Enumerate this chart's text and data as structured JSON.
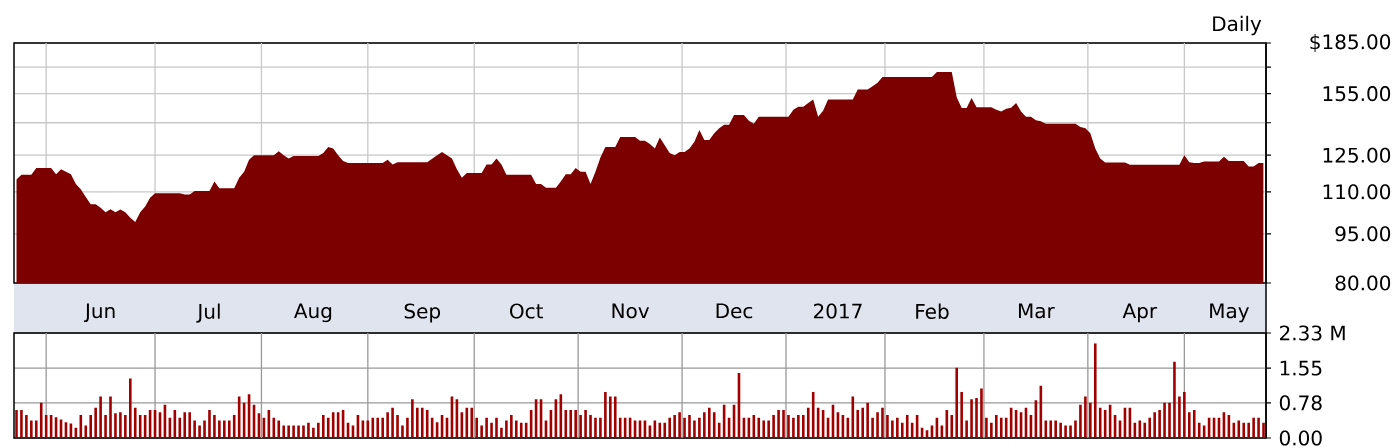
{
  "chart_data": [
    {
      "type": "area",
      "color": "#7d0000",
      "log": true,
      "grid": true,
      "annotations": [
        "Daily"
      ],
      "categories": [
        null,
        null,
        null,
        null,
        null,
        null,
        null,
        null,
        null,
        null,
        null,
        null,
        null,
        null,
        null,
        null,
        null,
        "Jun",
        null,
        null,
        null,
        null,
        null,
        null,
        null,
        null,
        null,
        null,
        null,
        null,
        null,
        null,
        null,
        null,
        null,
        null,
        null,
        null,
        null,
        "Jul",
        null,
        null,
        null,
        null,
        null,
        null,
        null,
        null,
        null,
        null,
        null,
        null,
        null,
        null,
        null,
        null,
        null,
        null,
        null,
        null,
        "Aug",
        null,
        null,
        null,
        null,
        null,
        null,
        null,
        null,
        null,
        null,
        null,
        null,
        null,
        null,
        null,
        null,
        null,
        null,
        null,
        null,
        null,
        "Sep",
        null,
        null,
        null,
        null,
        null,
        null,
        null,
        null,
        null,
        null,
        null,
        null,
        null,
        null,
        null,
        null,
        null,
        null,
        null,
        null,
        "Oct",
        null,
        null,
        null,
        null,
        null,
        null,
        null,
        null,
        null,
        null,
        null,
        null,
        null,
        null,
        null,
        null,
        null,
        null,
        null,
        null,
        "Nov",
        null,
        null,
        null,
        null,
        null,
        null,
        null,
        null,
        null,
        null,
        null,
        null,
        null,
        null,
        null,
        null,
        null,
        null,
        null,
        null,
        "Dec",
        null,
        null,
        null,
        null,
        null,
        null,
        null,
        null,
        null,
        null,
        null,
        null,
        null,
        null,
        null,
        null,
        null,
        null,
        null,
        null,
        "2017",
        null,
        null,
        null,
        null,
        null,
        null,
        null,
        null,
        null,
        null,
        null,
        null,
        null,
        null,
        null,
        null,
        null,
        null,
        "Feb",
        null,
        null,
        null,
        null,
        null,
        null,
        null,
        null,
        null,
        null,
        null,
        null,
        null,
        null,
        null,
        null,
        null,
        null,
        null,
        null,
        "Mar",
        null,
        null,
        null,
        null,
        null,
        null,
        null,
        null,
        null,
        null,
        null,
        null,
        null,
        null,
        null,
        null,
        null,
        null,
        null,
        null,
        "Apr",
        null,
        null,
        null,
        null,
        null,
        null,
        null,
        null,
        null,
        null,
        null,
        null,
        null,
        null,
        null,
        null,
        null,
        "May",
        null,
        null,
        null,
        null,
        null,
        null,
        null
      ],
      "values": [
        114.8,
        116.8,
        116.8,
        116.8,
        119.5,
        119.5,
        119.5,
        119.5,
        117,
        119,
        118,
        117,
        113,
        111,
        108,
        105.3,
        105.3,
        104,
        102.4,
        103.5,
        102.4,
        103.4,
        102.4,
        100.5,
        99,
        102.4,
        104.5,
        107.7,
        109.4,
        109.4,
        109.4,
        109.4,
        109.4,
        109.4,
        109,
        109,
        110.3,
        110.3,
        110.3,
        110.3,
        114,
        111.4,
        111.4,
        111.4,
        111.4,
        115.5,
        118,
        123,
        125,
        125,
        125,
        125,
        125,
        126.7,
        125,
        123.6,
        124.7,
        124.7,
        124.7,
        124.7,
        124.7,
        124.7,
        126,
        128.6,
        128,
        125,
        122.5,
        121.6,
        121.6,
        121.6,
        121.6,
        121.6,
        121.6,
        121.6,
        121.6,
        123,
        121,
        122,
        122,
        122,
        122,
        122,
        122,
        122,
        123.5,
        125,
        126.4,
        125,
        123.6,
        119,
        115.5,
        117.5,
        117.5,
        117.5,
        117.5,
        121,
        121,
        123.6,
        121,
        116.8,
        116.8,
        116.8,
        116.8,
        116.8,
        116.8,
        113,
        113,
        111.6,
        111.6,
        111.6,
        114,
        117,
        117,
        119.5,
        118,
        118,
        113,
        118,
        124,
        128.6,
        128.6,
        128.6,
        133.2,
        133.2,
        133.2,
        133.2,
        131.5,
        131.5,
        130,
        128,
        133,
        129.4,
        126,
        125,
        126.4,
        126.4,
        128,
        131,
        136.5,
        131.8,
        131.8,
        135,
        137.3,
        139,
        139,
        143.9,
        143.9,
        143.9,
        141,
        139.5,
        143,
        143,
        143,
        143,
        143,
        143,
        143,
        146.5,
        148,
        148,
        150,
        151.8,
        143,
        146,
        151.8,
        151.8,
        151.8,
        151.8,
        151.8,
        151.8,
        157.3,
        157.3,
        157.3,
        159,
        161,
        164.2,
        164.2,
        164.2,
        164.2,
        164.2,
        164.2,
        164.2,
        164.2,
        164.2,
        164.2,
        164.2,
        167.2,
        167.2,
        167.2,
        167.2,
        153,
        147.4,
        147.4,
        152.7,
        147.8,
        147.8,
        147.8,
        147.8,
        146.5,
        145.6,
        147,
        147.5,
        150,
        145.6,
        143,
        143,
        141.2,
        140.7,
        139.5,
        139.5,
        139.5,
        139.5,
        139.5,
        139.5,
        139.5,
        138,
        137.3,
        135,
        128,
        123.6,
        121.9,
        121.9,
        121.9,
        121.9,
        121.9,
        120.9,
        120.9,
        120.9,
        120.9,
        120.9,
        120.9,
        120.9,
        120.9,
        120.9,
        120.9,
        120.9,
        125,
        122,
        121.6,
        121.6,
        122.3,
        122.3,
        122.3,
        122.3,
        124.3,
        122.5,
        122.5,
        122.5,
        122.5,
        120.2,
        120.2,
        121.6,
        121.6
      ],
      "ylim": [
        80,
        185
      ],
      "yticks": [
        {
          "value": 80,
          "label": "80.00"
        },
        {
          "value": 95,
          "label": "95.00"
        },
        {
          "value": 110,
          "label": "110.00"
        },
        {
          "value": 125,
          "label": "125.00"
        },
        {
          "value": 140,
          "label": null
        },
        {
          "value": 155,
          "label": "155.00"
        },
        {
          "value": 170,
          "label": null
        },
        {
          "value": 185,
          "label": "$185.00"
        }
      ]
    },
    {
      "type": "bar",
      "color": "#a00000",
      "grid": true,
      "tick_labels": "y",
      "categories": [
        null,
        null,
        null,
        null,
        null,
        null,
        null,
        null,
        null,
        null,
        null,
        null,
        null,
        null,
        null,
        null,
        null,
        null,
        null,
        null,
        null,
        null,
        null,
        null,
        null,
        null,
        null,
        null,
        null,
        null,
        null,
        null,
        null,
        null,
        null,
        null,
        null,
        null,
        null,
        null,
        null,
        null,
        null,
        null,
        null,
        null,
        null,
        null,
        null,
        null,
        null,
        null,
        null,
        null,
        null,
        null,
        null,
        null,
        null,
        null,
        null,
        null,
        null,
        null,
        null,
        null,
        null,
        null,
        null,
        null,
        null,
        null,
        null,
        null,
        null,
        null,
        null,
        null,
        null,
        null,
        null,
        null,
        null,
        null,
        null,
        null,
        null,
        null,
        null,
        null,
        null,
        null,
        null,
        null,
        null,
        null,
        null,
        null,
        null,
        null,
        null,
        null,
        null,
        null,
        null,
        null,
        null,
        null,
        null,
        null,
        null,
        null,
        null,
        null,
        null,
        null,
        null,
        null,
        null,
        null,
        null,
        null,
        null,
        null,
        null,
        null,
        null,
        null,
        null,
        null,
        null,
        null,
        null,
        null,
        null,
        null,
        null,
        null,
        null,
        null,
        null,
        null,
        null,
        null,
        null,
        null,
        null,
        null,
        null,
        null,
        null,
        null,
        null,
        null,
        null,
        null,
        null,
        null,
        null,
        null,
        null,
        null,
        null,
        null,
        null,
        null,
        null,
        null,
        null,
        null,
        null,
        null,
        null,
        null,
        null,
        null,
        null,
        null,
        null,
        null,
        null,
        null,
        null,
        null,
        null,
        null,
        null,
        null,
        null,
        null,
        null,
        null,
        null,
        null,
        null,
        null,
        null,
        null,
        null,
        null,
        null,
        null,
        null,
        null,
        null,
        null,
        null,
        null,
        null,
        null,
        null,
        null,
        null,
        null,
        null,
        null,
        null,
        null,
        null,
        null,
        null,
        null,
        null,
        null,
        null,
        null,
        null,
        null,
        null,
        null,
        null,
        null,
        null,
        null,
        null,
        null,
        null,
        null,
        null,
        null,
        null,
        null,
        null,
        null,
        null,
        null,
        null,
        null,
        null,
        null,
        null,
        null,
        null
      ],
      "values": [
        0.62,
        0.62,
        0.51,
        0.39,
        0.39,
        0.78,
        0.51,
        0.51,
        0.46,
        0.41,
        0.35,
        0.32,
        0.23,
        0.51,
        0.28,
        0.51,
        0.67,
        0.92,
        0.51,
        0.92,
        0.55,
        0.57,
        0.51,
        1.32,
        0.67,
        0.51,
        0.51,
        0.62,
        0.62,
        0.57,
        0.74,
        0.45,
        0.62,
        0.45,
        0.57,
        0.57,
        0.39,
        0.28,
        0.39,
        0.62,
        0.51,
        0.39,
        0.39,
        0.39,
        0.51,
        0.92,
        0.78,
        0.97,
        0.74,
        0.55,
        0.45,
        0.62,
        0.45,
        0.39,
        0.28,
        0.28,
        0.28,
        0.28,
        0.28,
        0.34,
        0.23,
        0.34,
        0.51,
        0.45,
        0.57,
        0.57,
        0.62,
        0.34,
        0.28,
        0.51,
        0.39,
        0.39,
        0.45,
        0.45,
        0.45,
        0.57,
        0.67,
        0.51,
        0.28,
        0.45,
        0.86,
        0.67,
        0.67,
        0.62,
        0.45,
        0.35,
        0.51,
        0.45,
        0.92,
        0.86,
        0.57,
        0.67,
        0.67,
        0.45,
        0.28,
        0.45,
        0.34,
        0.45,
        0.23,
        0.39,
        0.51,
        0.39,
        0.34,
        0.34,
        0.62,
        0.86,
        0.86,
        0.39,
        0.62,
        0.86,
        0.97,
        0.62,
        0.62,
        0.62,
        0.51,
        0.62,
        0.51,
        0.45,
        0.45,
        1.02,
        0.92,
        0.92,
        0.45,
        0.45,
        0.45,
        0.39,
        0.39,
        0.39,
        0.28,
        0.39,
        0.34,
        0.34,
        0.45,
        0.51,
        0.57,
        0.45,
        0.51,
        0.39,
        0.45,
        0.57,
        0.67,
        0.57,
        0.34,
        0.74,
        0.45,
        0.74,
        1.44,
        0.45,
        0.45,
        0.51,
        0.45,
        0.39,
        0.39,
        0.51,
        0.62,
        0.62,
        0.51,
        0.45,
        0.51,
        0.51,
        0.67,
        1.02,
        0.67,
        0.62,
        0.45,
        0.74,
        0.57,
        0.51,
        0.45,
        0.92,
        0.62,
        0.67,
        0.78,
        0.45,
        0.57,
        0.67,
        0.51,
        0.39,
        0.45,
        0.34,
        0.51,
        0.34,
        0.51,
        0.23,
        0.17,
        0.28,
        0.45,
        0.28,
        0.62,
        0.51,
        1.56,
        1.02,
        0.39,
        0.86,
        0.89,
        1.1,
        0.45,
        0.34,
        0.51,
        0.45,
        0.45,
        0.67,
        0.62,
        0.57,
        0.67,
        0.51,
        0.84,
        1.16,
        0.39,
        0.39,
        0.39,
        0.34,
        0.28,
        0.28,
        0.39,
        0.74,
        0.92,
        0.78,
        2.1,
        0.67,
        0.62,
        0.74,
        0.51,
        0.39,
        0.67,
        0.67,
        0.34,
        0.39,
        0.34,
        0.45,
        0.57,
        0.62,
        0.78,
        0.78,
        1.69,
        0.92,
        1.02,
        0.57,
        0.62,
        0.34,
        0.28,
        0.45,
        0.45,
        0.45,
        0.57,
        0.51,
        0.34,
        0.39,
        0.34,
        0.34,
        0.45,
        0.45,
        0.34
      ],
      "ylim": [
        0,
        2.33
      ],
      "yticks": [
        {
          "value": 0,
          "label": "0.00"
        },
        0.78,
        1.55,
        {
          "value": 2.33,
          "label": "2.33 M"
        }
      ]
    }
  ]
}
